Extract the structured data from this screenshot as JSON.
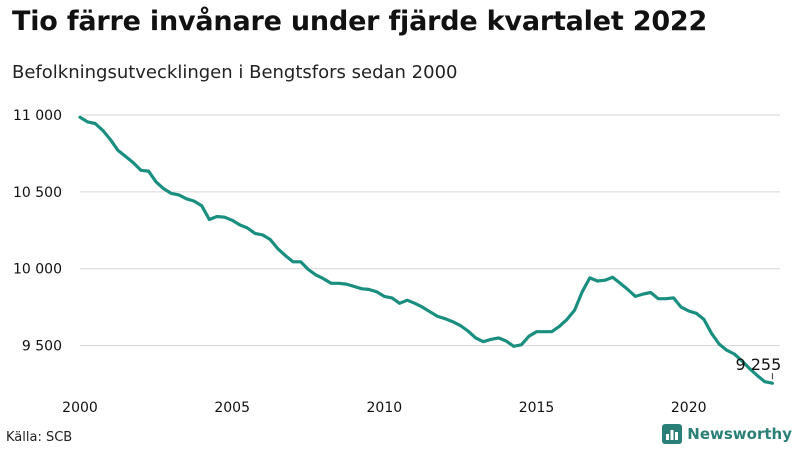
{
  "chart_data": {
    "type": "line",
    "title": "Tio färre invånare under fjärde kvartalet 2022",
    "subtitle": "Befolkningsutvecklingen i Bengtsfors sedan 2000",
    "xlabel": "",
    "ylabel": "",
    "xlim": [
      2000,
      2023
    ],
    "ylim": [
      9250,
      11000
    ],
    "x_ticks": [
      2000,
      2005,
      2010,
      2015,
      2020
    ],
    "y_ticks": [
      9500,
      10000,
      10500,
      11000
    ],
    "y_tick_labels": [
      "9 500",
      "10 000",
      "10 500",
      "11 000"
    ],
    "grid": "horizontal",
    "line_color": "#1a8f80",
    "end_label": "9 255",
    "x": [
      2000.0,
      2000.25,
      2000.5,
      2000.75,
      2001.0,
      2001.25,
      2001.5,
      2001.75,
      2002.0,
      2002.25,
      2002.5,
      2002.75,
      2003.0,
      2003.25,
      2003.5,
      2003.75,
      2004.0,
      2004.25,
      2004.5,
      2004.75,
      2005.0,
      2005.25,
      2005.5,
      2005.75,
      2006.0,
      2006.25,
      2006.5,
      2006.75,
      2007.0,
      2007.25,
      2007.5,
      2007.75,
      2008.0,
      2008.25,
      2008.5,
      2008.75,
      2009.0,
      2009.25,
      2009.5,
      2009.75,
      2010.0,
      2010.25,
      2010.5,
      2010.75,
      2011.0,
      2011.25,
      2011.5,
      2011.75,
      2012.0,
      2012.25,
      2012.5,
      2012.75,
      2013.0,
      2013.25,
      2013.5,
      2013.75,
      2014.0,
      2014.25,
      2014.5,
      2014.75,
      2015.0,
      2015.25,
      2015.5,
      2015.75,
      2016.0,
      2016.25,
      2016.5,
      2016.75,
      2017.0,
      2017.25,
      2017.5,
      2017.75,
      2018.0,
      2018.25,
      2018.5,
      2018.75,
      2019.0,
      2019.25,
      2019.5,
      2019.75,
      2020.0,
      2020.25,
      2020.5,
      2020.75,
      2021.0,
      2021.25,
      2021.5,
      2021.75,
      2022.0,
      2022.25,
      2022.5,
      2022.75
    ],
    "series": [
      {
        "values": [
          10985,
          10955,
          10945,
          10900,
          10840,
          10770,
          10730,
          10690,
          10640,
          10635,
          10565,
          10520,
          10490,
          10480,
          10455,
          10440,
          10410,
          10320,
          10340,
          10335,
          10315,
          10285,
          10265,
          10230,
          10220,
          10190,
          10130,
          10085,
          10045,
          10045,
          9995,
          9960,
          9935,
          9905,
          9905,
          9900,
          9885,
          9870,
          9865,
          9850,
          9820,
          9810,
          9775,
          9795,
          9775,
          9750,
          9720,
          9690,
          9675,
          9655,
          9630,
          9595,
          9550,
          9525,
          9540,
          9550,
          9530,
          9495,
          9505,
          9560,
          9590,
          9590,
          9590,
          9625,
          9670,
          9730,
          9850,
          9940,
          9920,
          9925,
          9945,
          9905,
          9865,
          9820,
          9835,
          9845,
          9805,
          9805,
          9810,
          9750,
          9725,
          9710,
          9670,
          9580,
          9510,
          9470,
          9445,
          9400,
          9350,
          9305,
          9265,
          9255
        ]
      }
    ]
  },
  "footer": {
    "source": "Källa: SCB",
    "brand": "Newsworthy"
  },
  "icons": {
    "brand": "newsworthy-logo-icon"
  }
}
